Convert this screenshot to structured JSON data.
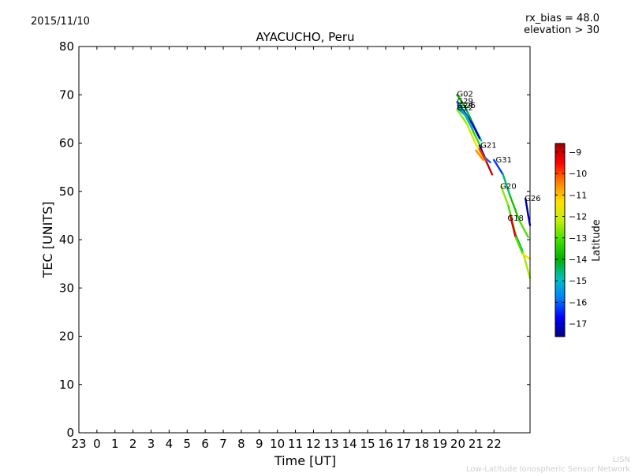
{
  "header": {
    "date": "2015/11/10",
    "rx_bias": "rx_bias = 48.0",
    "elevation": "elevation > 30"
  },
  "footer": {
    "line1": "LISN",
    "line2": "Low-Latitude Ionospheric Sensor Network"
  },
  "chart_data": {
    "type": "line",
    "title": "AYACUCHO, Peru",
    "xlabel": "Time [UT]",
    "ylabel": "TEC [UNITS]",
    "xlim": [
      23,
      48
    ],
    "ylim": [
      0,
      80
    ],
    "x_ticks": [
      {
        "value": 23,
        "label": "23"
      },
      {
        "value": 24,
        "label": "0"
      },
      {
        "value": 25,
        "label": "1"
      },
      {
        "value": 26,
        "label": "2"
      },
      {
        "value": 27,
        "label": "3"
      },
      {
        "value": 28,
        "label": "4"
      },
      {
        "value": 29,
        "label": "5"
      },
      {
        "value": 30,
        "label": "6"
      },
      {
        "value": 31,
        "label": "7"
      },
      {
        "value": 32,
        "label": "8"
      },
      {
        "value": 33,
        "label": "9"
      },
      {
        "value": 34,
        "label": "10"
      },
      {
        "value": 35,
        "label": "11"
      },
      {
        "value": 36,
        "label": "12"
      },
      {
        "value": 37,
        "label": "13"
      },
      {
        "value": 38,
        "label": "14"
      },
      {
        "value": 39,
        "label": "15"
      },
      {
        "value": 40,
        "label": "16"
      },
      {
        "value": 41,
        "label": "17"
      },
      {
        "value": 42,
        "label": "18"
      },
      {
        "value": 43,
        "label": "19"
      },
      {
        "value": 44,
        "label": "20"
      },
      {
        "value": 45,
        "label": "21"
      },
      {
        "value": 46,
        "label": "22"
      }
    ],
    "y_ticks": [
      {
        "value": 0,
        "label": "0"
      },
      {
        "value": 10,
        "label": "10"
      },
      {
        "value": 20,
        "label": "20"
      },
      {
        "value": 30,
        "label": "30"
      },
      {
        "value": 40,
        "label": "40"
      },
      {
        "value": 50,
        "label": "50"
      },
      {
        "value": 60,
        "label": "60"
      },
      {
        "value": 70,
        "label": "70"
      },
      {
        "value": 80,
        "label": "80"
      }
    ],
    "grid": false,
    "colorbar": {
      "label": "Latitude",
      "range": [
        -17.6,
        -8.6
      ],
      "ticks": [
        {
          "value": -9,
          "label": "−9"
        },
        {
          "value": -10,
          "label": "−10"
        },
        {
          "value": -11,
          "label": "−11"
        },
        {
          "value": -12,
          "label": "−12"
        },
        {
          "value": -13,
          "label": "−13"
        },
        {
          "value": -14,
          "label": "−14"
        },
        {
          "value": -15,
          "label": "−15"
        },
        {
          "value": -16,
          "label": "−16"
        },
        {
          "value": -17,
          "label": "−17"
        }
      ],
      "stops": [
        "#00007f",
        "#0000ff",
        "#0080ff",
        "#00c0c0",
        "#00b000",
        "#40e000",
        "#c0f000",
        "#ffe000",
        "#ff8000",
        "#ff0000",
        "#a00000"
      ]
    },
    "series": [
      {
        "name": "G02",
        "label_at": [
          43.95,
          69.6
        ],
        "segments": [
          {
            "from": [
              43.95,
              70.0
            ],
            "to": [
              44.4,
              67.5
            ],
            "lat": -13.8
          },
          {
            "from": [
              44.4,
              67.5
            ],
            "to": [
              44.9,
              63.5
            ],
            "lat": -14.3
          },
          {
            "from": [
              44.9,
              63.5
            ],
            "to": [
              45.3,
              60.5
            ],
            "lat": -15.0
          }
        ]
      },
      {
        "name": "G29",
        "label_at": [
          43.95,
          68.2
        ],
        "segments": [
          {
            "from": [
              43.95,
              68.5
            ],
            "to": [
              44.3,
              66.8
            ],
            "lat": -15.8
          },
          {
            "from": [
              44.3,
              66.8
            ],
            "to": [
              44.8,
              64.0
            ],
            "lat": -16.8
          },
          {
            "from": [
              44.8,
              64.0
            ],
            "to": [
              45.2,
              61.0
            ],
            "lat": -17.3
          }
        ]
      },
      {
        "name": "G25",
        "label_at": [
          44.1,
          67.3
        ],
        "segments": [
          {
            "from": [
              43.95,
              67.0
            ],
            "to": [
              44.5,
              64.0
            ],
            "lat": -12.6
          },
          {
            "from": [
              44.5,
              64.0
            ],
            "to": [
              44.9,
              60.5
            ],
            "lat": -12.2
          },
          {
            "from": [
              44.9,
              60.5
            ],
            "to": [
              45.4,
              57.0
            ],
            "lat": -11.3
          }
        ]
      },
      {
        "name": "G24",
        "label_at": [
          43.95,
          67.3
        ],
        "segments": [
          {
            "from": [
              44.0,
              67.8
            ],
            "to": [
              44.5,
              65.5
            ],
            "lat": -14.5
          },
          {
            "from": [
              44.5,
              65.5
            ],
            "to": [
              44.9,
              62.0
            ],
            "lat": -13.6
          },
          {
            "from": [
              44.9,
              62.0
            ],
            "to": [
              45.3,
              59.0
            ],
            "lat": -13.2
          }
        ]
      },
      {
        "name": "G12",
        "label_at": [
          43.95,
          66.8
        ],
        "segments": [
          {
            "from": [
              44.0,
              67.2
            ],
            "to": [
              44.4,
              65.8
            ],
            "lat": -15.5
          },
          {
            "from": [
              44.4,
              65.8
            ],
            "to": [
              44.8,
              63.0
            ],
            "lat": -15.2
          }
        ]
      },
      {
        "name": "G21",
        "label_at": [
          45.25,
          59.0
        ],
        "segments": [
          {
            "from": [
              45.2,
              59.5
            ],
            "to": [
              45.5,
              57.0
            ],
            "lat": -17.2
          },
          {
            "from": [
              45.5,
              57.0
            ],
            "to": [
              45.8,
              56.0
            ],
            "lat": -16.0
          },
          {
            "from": [
              45.2,
              58.8
            ],
            "to": [
              45.6,
              56.0
            ],
            "lat": -9.8
          },
          {
            "from": [
              45.6,
              56.0
            ],
            "to": [
              45.9,
              53.5
            ],
            "lat": -9.0
          },
          {
            "from": [
              45.0,
              58.5
            ],
            "to": [
              45.4,
              56.5
            ],
            "lat": -10.5
          }
        ]
      },
      {
        "name": "G31",
        "label_at": [
          46.1,
          56.0
        ],
        "segments": [
          {
            "from": [
              46.0,
              56.5
            ],
            "to": [
              46.5,
              53.5
            ],
            "lat": -16.3
          },
          {
            "from": [
              46.5,
              53.5
            ],
            "to": [
              46.9,
              49.0
            ],
            "lat": -14.5
          },
          {
            "from": [
              46.9,
              49.0
            ],
            "to": [
              47.4,
              44.0
            ],
            "lat": -13.7
          },
          {
            "from": [
              47.4,
              44.0
            ],
            "to": [
              47.9,
              40.5
            ],
            "lat": -13.0
          }
        ]
      },
      {
        "name": "G20",
        "label_at": [
          46.35,
          50.5
        ],
        "segments": [
          {
            "from": [
              46.4,
              51.0
            ],
            "to": [
              46.8,
              47.0
            ],
            "lat": -12.6
          },
          {
            "from": [
              46.8,
              47.0
            ],
            "to": [
              47.2,
              41.0
            ],
            "lat": -13.2
          },
          {
            "from": [
              47.2,
              41.0
            ],
            "to": [
              47.6,
              37.5
            ],
            "lat": -14.2
          },
          {
            "from": [
              47.6,
              37.5
            ],
            "to": [
              48.0,
              32.0
            ],
            "lat": -12.4
          }
        ]
      },
      {
        "name": "G26",
        "label_at": [
          47.7,
          48.0
        ],
        "segments": [
          {
            "from": [
              47.75,
              48.5
            ],
            "to": [
              47.9,
              45.0
            ],
            "lat": -17.5
          },
          {
            "from": [
              47.9,
              45.0
            ],
            "to": [
              48.0,
              43.0
            ],
            "lat": -17.0
          }
        ]
      },
      {
        "name": "G18",
        "label_at": [
          46.75,
          43.9
        ],
        "segments": [
          {
            "from": [
              46.9,
              45.0
            ],
            "to": [
              47.2,
              40.5
            ],
            "lat": -9.2
          },
          {
            "from": [
              47.2,
              40.5
            ],
            "to": [
              47.6,
              37.0
            ],
            "lat": -13.0
          },
          {
            "from": [
              47.6,
              37.0
            ],
            "to": [
              48.0,
              36.0
            ],
            "lat": -11.3
          }
        ]
      }
    ]
  }
}
